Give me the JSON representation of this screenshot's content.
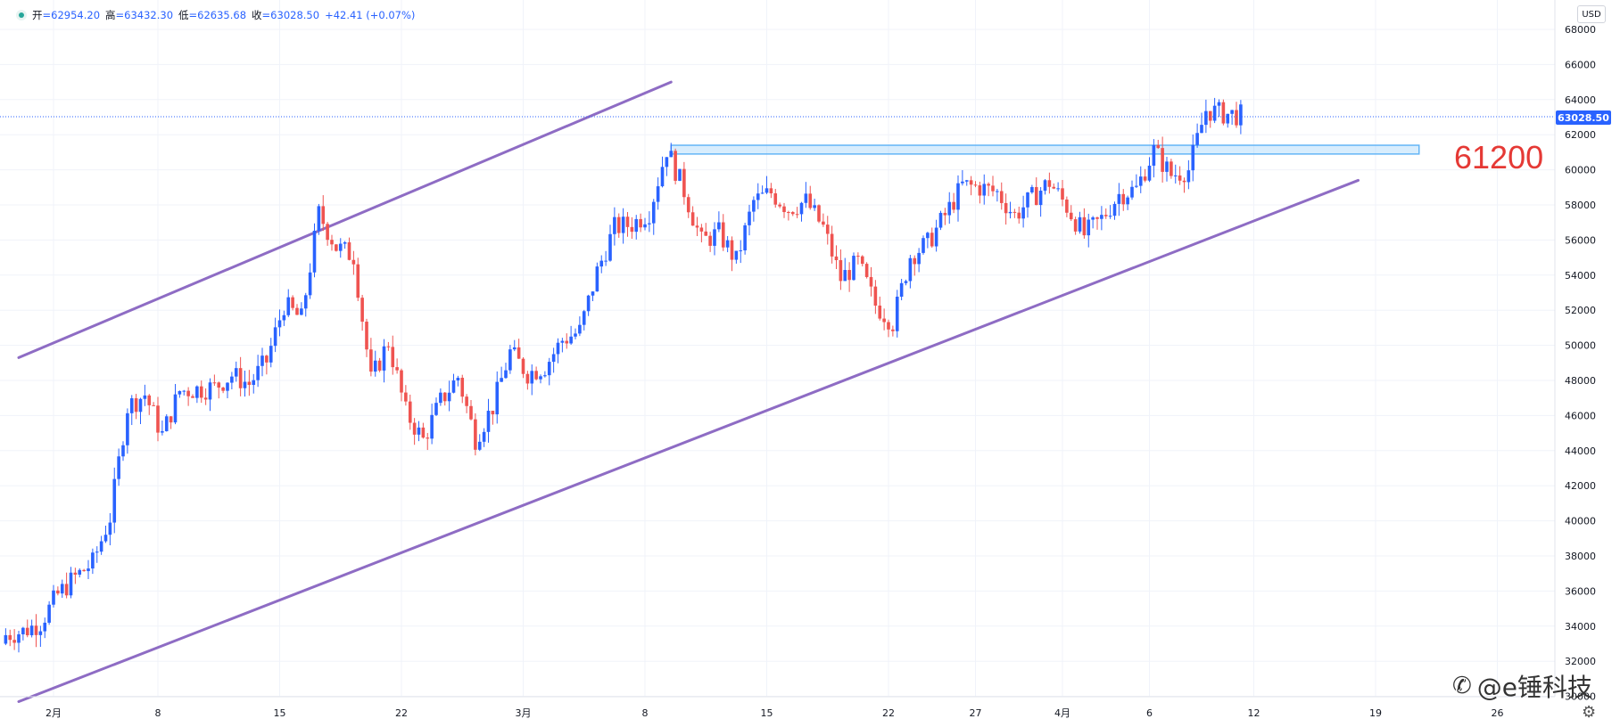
{
  "header": {
    "open_label": "开",
    "open": "=62954.20",
    "high_label": "高",
    "high": "=63432.30",
    "low_label": "低",
    "low": "=62635.68",
    "close_label": "收",
    "close": "=63028.50",
    "change": "+42.41 (+0.07%)"
  },
  "currency": "USD",
  "last_price_label": "63028.50",
  "level_annotation": "61200",
  "watermark": {
    "icon": "weibo-icon",
    "text": "@e锤科技"
  },
  "colors": {
    "up": "#2962ff",
    "down": "#ef5350",
    "channel": "#8e6cc4",
    "zone": "#90caf9",
    "accent": "#2962ff",
    "annotation": "#e53935"
  },
  "chart_data": {
    "type": "candlestick",
    "y_axis": {
      "min": 30000,
      "max": 68000,
      "step": 2000,
      "ticks": [
        "68000",
        "66000",
        "64000",
        "62000",
        "60000",
        "58000",
        "56000",
        "54000",
        "52000",
        "50000",
        "48000",
        "46000",
        "44000",
        "42000",
        "40000",
        "38000",
        "36000",
        "34000",
        "32000",
        "30000"
      ]
    },
    "x_axis": {
      "labels": [
        {
          "label": "2月",
          "day": 0
        },
        {
          "label": "8",
          "day": 6
        },
        {
          "label": "15",
          "day": 13
        },
        {
          "label": "22",
          "day": 20
        },
        {
          "label": "3月",
          "day": 27
        },
        {
          "label": "8",
          "day": 34
        },
        {
          "label": "15",
          "day": 41
        },
        {
          "label": "22",
          "day": 48
        },
        {
          "label": "27",
          "day": 53
        },
        {
          "label": "4月",
          "day": 58
        },
        {
          "label": "6",
          "day": 63
        },
        {
          "label": "12",
          "day": 69
        },
        {
          "label": "19",
          "day": 76
        },
        {
          "label": "26",
          "day": 83
        }
      ]
    },
    "grid": true,
    "last_price": 63028.5,
    "resistance_zone": {
      "low": 60900,
      "high": 61400,
      "start_day": 35.5,
      "end_day": 78.5,
      "label": "61200"
    },
    "channel": {
      "upper": [
        {
          "day": -2,
          "value": 49300
        },
        {
          "day": 35.5,
          "value": 65000
        }
      ],
      "lower": [
        {
          "day": -2,
          "value": 29700
        },
        {
          "day": 75,
          "value": 59400
        }
      ]
    },
    "days_per_candle": 0.25,
    "closes_daily": [
      33500,
      33700,
      34200,
      35800,
      36800,
      37600,
      40200,
      46500,
      47200,
      44900,
      47400,
      47500,
      47600,
      48300,
      47800,
      49100,
      52300,
      51500,
      57500,
      55600,
      55100,
      48000,
      50200,
      46200,
      44600,
      46800,
      48200,
      44700,
      46500,
      49600,
      48400,
      48800,
      50300,
      50800,
      54200,
      56700,
      56900,
      57600,
      61200,
      58800,
      55900,
      56400,
      54800,
      58200,
      58700,
      57800,
      58200,
      56700,
      53800,
      54700,
      52300,
      51300,
      55100,
      55800,
      57400,
      59100,
      59000,
      58700,
      57400,
      58400,
      59300,
      57900,
      56300,
      57200,
      58600,
      58900,
      61100,
      59700,
      60000,
      63400,
      63200,
      63100
    ]
  }
}
